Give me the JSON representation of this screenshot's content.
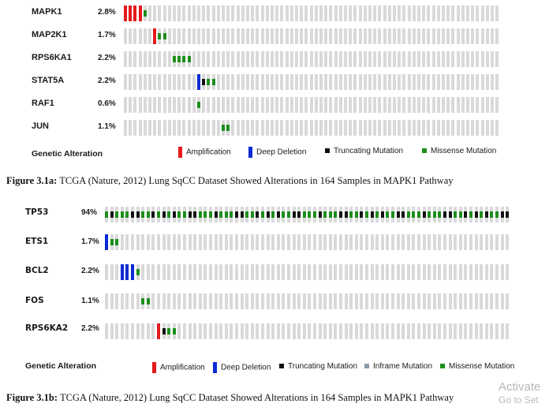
{
  "panel_a": {
    "genes": [
      {
        "name": "MAPK1",
        "pct": "2.8%"
      },
      {
        "name": "MAP2K1",
        "pct": "1.7%"
      },
      {
        "name": "RPS6KA1",
        "pct": "2.2%"
      },
      {
        "name": "STAT5A",
        "pct": "2.2%"
      },
      {
        "name": "RAF1",
        "pct": "0.6%"
      },
      {
        "name": "JUN",
        "pct": "1.1%"
      }
    ],
    "legend": {
      "title": "Genetic Alteration",
      "amplification": "Amplification",
      "deep_deletion": "Deep Deletion",
      "truncating": "Truncating Mutation",
      "missense": "Missense Mutation"
    },
    "caption_label": "Figure 3.1a:",
    "caption_text": " TCGA (Nature, 2012) Lung SqCC Dataset Showed Alterations in 164 Samples in MAPK1 Pathway"
  },
  "panel_b": {
    "genes": [
      {
        "name": "TP53",
        "pct": "94%"
      },
      {
        "name": "ETS1",
        "pct": "1.7%"
      },
      {
        "name": "BCL2",
        "pct": "2.2%"
      },
      {
        "name": "FOS",
        "pct": "1.1%"
      },
      {
        "name": "RPS6KA2",
        "pct": "2.2%"
      }
    ],
    "legend": {
      "title": "Genetic Alteration",
      "amplification": "Amplification",
      "deep_deletion": "Deep Deletion",
      "truncating": "Truncating Mutation",
      "inframe": "Inframe Mutation",
      "missense": "Missense Mutation"
    },
    "caption_label": "Figure 3.1b:",
    "caption_text": " TCGA (Nature, 2012) Lung SqCC Dataset Showed Alterations in 164 Samples in MAPK1 Pathway"
  },
  "watermark": {
    "line1": "Activate",
    "line2": "Go to Set"
  },
  "colors": {
    "amplification": "#e41a1c",
    "deep_deletion": "#0b2bd3",
    "truncating": "#111111",
    "missense": "#1b8f1b",
    "inframe": "#8c9aaa",
    "no_alteration": "#d9d9d9"
  }
}
